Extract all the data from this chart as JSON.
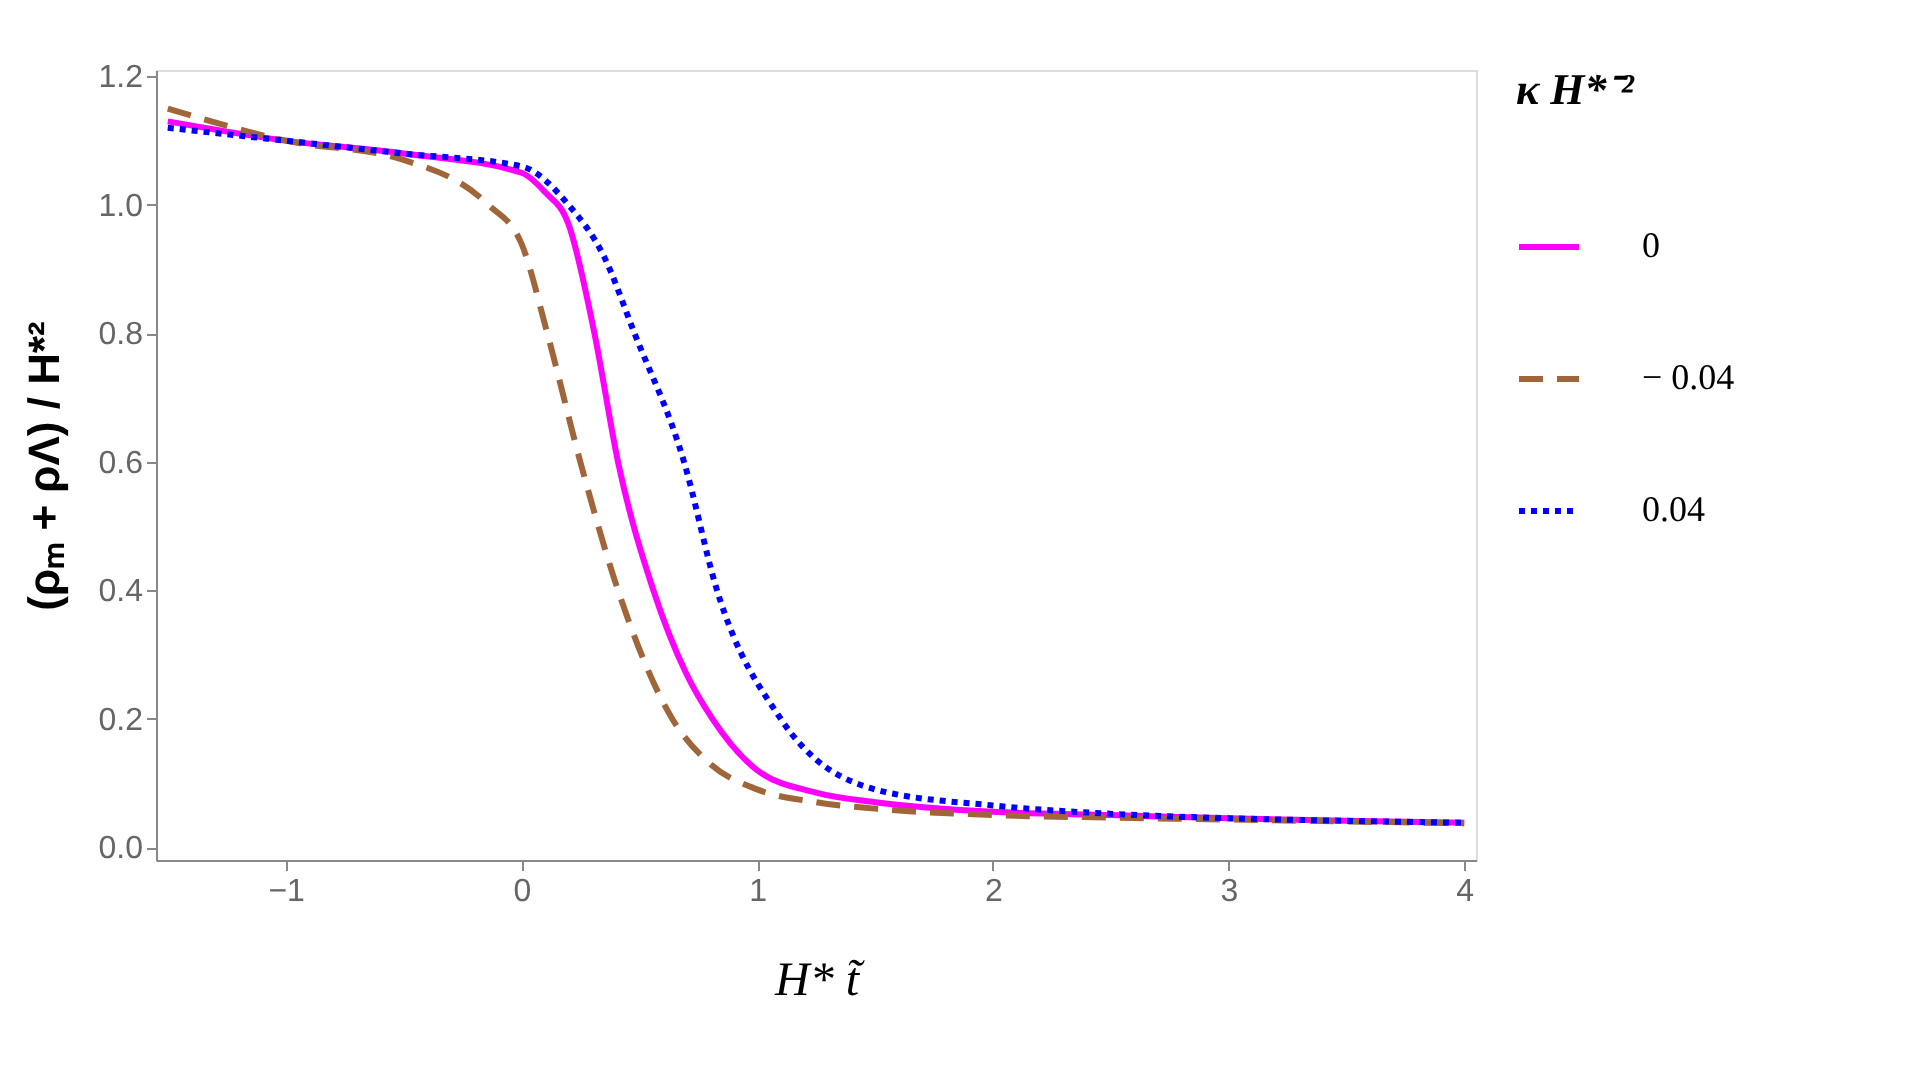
{
  "chart_data": {
    "type": "line",
    "xlabel": "H* t̃",
    "ylabel": "(ρₘ + ρΛ) / H*²",
    "legend_title": "κ H*⁻²",
    "legend": "right",
    "grid": false,
    "xlim": [
      -1.55,
      4.05
    ],
    "ylim": [
      -0.02,
      1.21
    ],
    "xticks": [
      {
        "value": -1,
        "label": "−1"
      },
      0,
      1,
      2,
      3,
      4
    ],
    "yticks": [
      {
        "value": 0,
        "label": "0.0"
      },
      {
        "value": 0.2,
        "label": "0.2"
      },
      {
        "value": 0.4,
        "label": "0.4"
      },
      {
        "value": 0.6,
        "label": "0.6"
      },
      {
        "value": 0.8,
        "label": "0.8"
      },
      {
        "value": 1,
        "label": "1.0"
      },
      {
        "value": 1.2,
        "label": "1.2"
      }
    ],
    "series": [
      {
        "name": "0",
        "color": "#ff00ff",
        "line_style": "solid",
        "x": [
          -1.5,
          -1,
          -0.5,
          0,
          0.1,
          0.2,
          0.31,
          0.41,
          0.56,
          0.7,
          0.81,
          1,
          1.25,
          1.5,
          2,
          2.5,
          3,
          3.5,
          4
        ],
        "values": [
          1.13,
          1.1,
          1.08,
          1.05,
          1.02,
          0.97,
          0.8,
          0.6,
          0.4,
          0.27,
          0.2,
          0.12,
          0.085,
          0.07,
          0.055,
          0.05,
          0.045,
          0.041,
          0.038
        ]
      },
      {
        "name": "− 0.04",
        "color": "#a0663a",
        "line_style": "dashed",
        "x": [
          -1.5,
          -1,
          -0.5,
          -0.14,
          0,
          0.11,
          0.25,
          0.41,
          0.64,
          0.8,
          1,
          1.25,
          1.5,
          2,
          2.5,
          3,
          3.5,
          4
        ],
        "values": [
          1.15,
          1.1,
          1.07,
          1.0,
          0.94,
          0.8,
          0.6,
          0.4,
          0.2,
          0.13,
          0.09,
          0.07,
          0.06,
          0.05,
          0.046,
          0.043,
          0.04,
          0.037
        ]
      },
      {
        "name": "0.04",
        "color": "#0000ff",
        "line_style": "dotted",
        "x": [
          -1.5,
          -1,
          -0.5,
          0,
          0.2,
          0.35,
          0.48,
          0.69,
          0.83,
          1.1,
          1.5,
          2,
          2.5,
          3,
          3.5,
          4
        ],
        "values": [
          1.12,
          1.1,
          1.08,
          1.06,
          1.0,
          0.92,
          0.8,
          0.6,
          0.4,
          0.2,
          0.09,
          0.065,
          0.052,
          0.045,
          0.041,
          0.038
        ]
      }
    ]
  }
}
